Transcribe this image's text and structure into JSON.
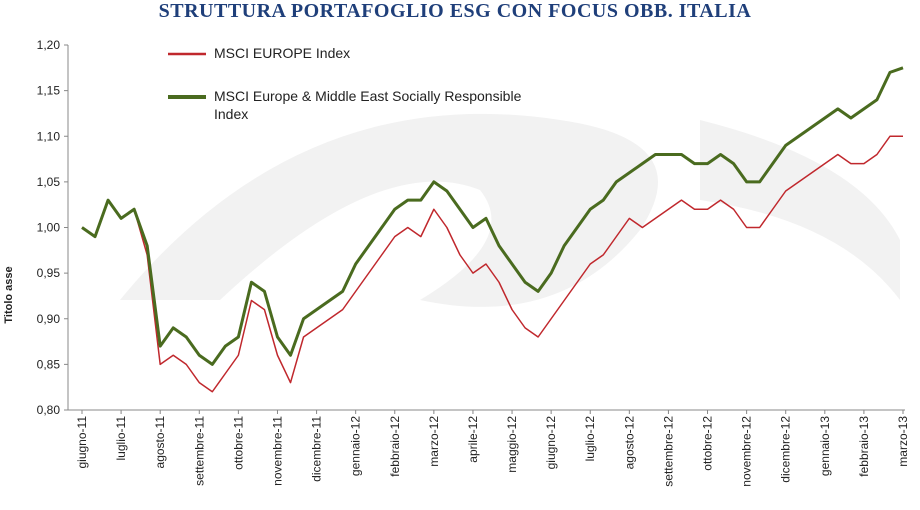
{
  "chart_data": {
    "type": "line",
    "title": "STRUTTURA PORTAFOGLIO ESG CON FOCUS OBB. ITALIA",
    "y_label": "Titolo asse",
    "legend": "top-left",
    "grid": false,
    "categories": [
      "giugno-11",
      null,
      null,
      "luglio-11",
      null,
      null,
      "agosto-11",
      null,
      null,
      "settembre-11",
      null,
      null,
      "ottobre-11",
      null,
      null,
      "novembre-11",
      null,
      null,
      "dicembre-11",
      null,
      null,
      "gennaio-12",
      null,
      null,
      "febbraio-12",
      null,
      null,
      "marzo-12",
      null,
      null,
      "aprile-12",
      null,
      null,
      "maggio-12",
      null,
      null,
      "giugno-12",
      null,
      null,
      "luglio-12",
      null,
      null,
      "agosto-12",
      null,
      null,
      "settembre-12",
      null,
      null,
      "ottobre-12",
      null,
      null,
      "novembre-12",
      null,
      null,
      "dicembre-12",
      null,
      null,
      "gennaio-13",
      null,
      null,
      "febbraio-13",
      null,
      null,
      "marzo-13"
    ],
    "series": [
      {
        "name": "MSCI EUROPE Index",
        "color": "#c0282d",
        "width": 1.5,
        "values": [
          1.0,
          0.99,
          1.03,
          1.01,
          1.02,
          0.97,
          0.85,
          0.86,
          0.85,
          0.83,
          0.82,
          0.84,
          0.86,
          0.92,
          0.91,
          0.86,
          0.83,
          0.88,
          0.89,
          0.9,
          0.91,
          0.93,
          0.95,
          0.97,
          0.99,
          1.0,
          0.99,
          1.02,
          1.0,
          0.97,
          0.95,
          0.96,
          0.94,
          0.91,
          0.89,
          0.88,
          0.9,
          0.92,
          0.94,
          0.96,
          0.97,
          0.99,
          1.01,
          1.0,
          1.01,
          1.02,
          1.03,
          1.02,
          1.02,
          1.03,
          1.02,
          1.0,
          1.0,
          1.02,
          1.04,
          1.05,
          1.06,
          1.07,
          1.08,
          1.07,
          1.07,
          1.08,
          1.1,
          1.1
        ]
      },
      {
        "name": "MSCI Europe & Middle East Socially Responsible Index",
        "color": "#4a6b1f",
        "width": 3,
        "values": [
          1.0,
          0.99,
          1.03,
          1.01,
          1.02,
          0.98,
          0.87,
          0.89,
          0.88,
          0.86,
          0.85,
          0.87,
          0.88,
          0.94,
          0.93,
          0.88,
          0.86,
          0.9,
          0.91,
          0.92,
          0.93,
          0.96,
          0.98,
          1.0,
          1.02,
          1.03,
          1.03,
          1.05,
          1.04,
          1.02,
          1.0,
          1.01,
          0.98,
          0.96,
          0.94,
          0.93,
          0.95,
          0.98,
          1.0,
          1.02,
          1.03,
          1.05,
          1.06,
          1.07,
          1.08,
          1.08,
          1.08,
          1.07,
          1.07,
          1.08,
          1.07,
          1.05,
          1.05,
          1.07,
          1.09,
          1.1,
          1.11,
          1.12,
          1.13,
          1.12,
          1.13,
          1.14,
          1.17,
          1.175
        ]
      }
    ],
    "ylim": [
      0.8,
      1.2
    ],
    "yticks": [
      {
        "value": 0.8,
        "label": "0,80"
      },
      {
        "value": 0.85,
        "label": "0,85"
      },
      {
        "value": 0.9,
        "label": "0,90"
      },
      {
        "value": 0.95,
        "label": "0,95"
      },
      {
        "value": 1.0,
        "label": "1,00"
      },
      {
        "value": 1.05,
        "label": "1,05"
      },
      {
        "value": 1.1,
        "label": "1,10"
      },
      {
        "value": 1.15,
        "label": "1,15"
      },
      {
        "value": 1.2,
        "label": "1,20"
      }
    ]
  }
}
